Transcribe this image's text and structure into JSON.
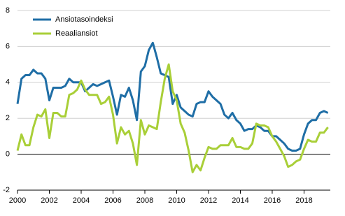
{
  "chart_data": {
    "type": "line",
    "x": [
      2000,
      2000.25,
      2000.5,
      2000.75,
      2001,
      2001.25,
      2001.5,
      2001.75,
      2002,
      2002.25,
      2002.5,
      2002.75,
      2003,
      2003.25,
      2003.5,
      2003.75,
      2004,
      2004.25,
      2004.5,
      2004.75,
      2005,
      2005.25,
      2005.5,
      2005.75,
      2006,
      2006.25,
      2006.5,
      2006.75,
      2007,
      2007.25,
      2007.5,
      2007.75,
      2008,
      2008.25,
      2008.5,
      2008.75,
      2009,
      2009.25,
      2009.5,
      2009.75,
      2010,
      2010.25,
      2010.5,
      2010.75,
      2011,
      2011.25,
      2011.5,
      2011.75,
      2012,
      2012.25,
      2012.5,
      2012.75,
      2013,
      2013.25,
      2013.5,
      2013.75,
      2014,
      2014.25,
      2014.5,
      2014.75,
      2015,
      2015.25,
      2015.5,
      2015.75,
      2016,
      2016.25,
      2016.5,
      2016.75,
      2017,
      2017.25,
      2017.5,
      2017.75,
      2018,
      2018.25,
      2018.5,
      2018.75,
      2019,
      2019.25,
      2019.5
    ],
    "series": [
      {
        "name": "Ansiotasoindeksi",
        "color": "#1f6ea6",
        "values": [
          2.8,
          4.2,
          4.4,
          4.4,
          4.7,
          4.5,
          4.5,
          4.2,
          3.0,
          3.7,
          3.7,
          3.7,
          3.8,
          4.2,
          4.0,
          4.0,
          4.0,
          3.5,
          3.7,
          3.9,
          3.8,
          3.9,
          4.0,
          4.1,
          3.2,
          2.2,
          3.3,
          3.2,
          3.7,
          3.0,
          1.9,
          4.6,
          4.9,
          5.8,
          6.2,
          5.4,
          4.5,
          4.4,
          4.3,
          2.8,
          3.3,
          2.6,
          2.4,
          2.2,
          2.1,
          2.8,
          2.9,
          2.9,
          3.5,
          3.2,
          3.0,
          2.8,
          2.2,
          2.0,
          2.3,
          1.9,
          1.7,
          1.3,
          1.4,
          1.4,
          1.6,
          1.5,
          1.3,
          1.3,
          1.0,
          1.0,
          0.8,
          0.6,
          0.3,
          0.2,
          0.2,
          0.3,
          1.1,
          1.7,
          1.9,
          1.9,
          2.3,
          2.4,
          2.3
        ]
      },
      {
        "name": "Reaaliansiot",
        "color": "#a9cf38",
        "values": [
          0.2,
          1.1,
          0.5,
          0.5,
          1.5,
          2.2,
          2.1,
          2.5,
          0.9,
          2.3,
          2.3,
          2.1,
          2.1,
          3.3,
          3.4,
          3.6,
          4.1,
          3.6,
          3.3,
          3.3,
          3.3,
          2.8,
          2.9,
          3.2,
          2.2,
          0.6,
          1.5,
          1.1,
          1.3,
          0.6,
          -0.6,
          1.9,
          1.1,
          1.6,
          1.5,
          1.4,
          2.9,
          4.2,
          5.0,
          3.5,
          3.0,
          1.7,
          1.2,
          0.2,
          -1.0,
          -0.6,
          -0.9,
          -0.2,
          0.4,
          0.3,
          0.3,
          0.5,
          0.5,
          0.5,
          0.9,
          0.4,
          0.4,
          0.3,
          0.3,
          0.6,
          1.7,
          1.6,
          1.6,
          1.5,
          1.0,
          0.7,
          0.3,
          -0.1,
          -0.7,
          -0.6,
          -0.4,
          -0.3,
          0.3,
          0.8,
          0.7,
          0.7,
          1.2,
          1.2,
          1.5
        ]
      }
    ],
    "xlim": [
      2000,
      2019.65
    ],
    "xticks": [
      2000,
      2002,
      2004,
      2006,
      2008,
      2010,
      2012,
      2014,
      2016,
      2018
    ],
    "ylim": [
      -2,
      8
    ],
    "yticks": [
      -2,
      0,
      2,
      4,
      6,
      8
    ],
    "grid": true,
    "legend": "top-left"
  }
}
